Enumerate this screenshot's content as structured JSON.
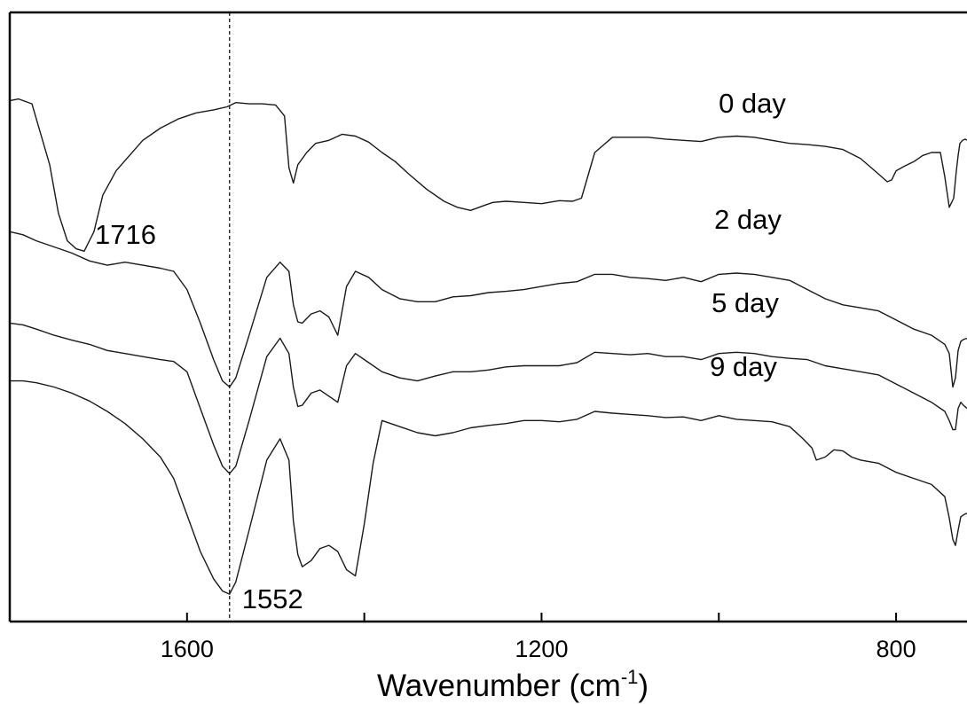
{
  "chart_data": {
    "type": "line",
    "title": "",
    "xlabel": "Wavenumber (cm",
    "xlabel_sup": "-1",
    "xlabel_close": ")",
    "ylabel": "",
    "x_reversed": true,
    "xlim": [
      1800,
      720
    ],
    "ylim": [
      0,
      1
    ],
    "y_ticks_shown": false,
    "grid": false,
    "x_ticks": [
      1600,
      1400,
      1200,
      1000,
      800
    ],
    "x_tick_labels": [
      {
        "value": 1600,
        "label": "1600"
      },
      {
        "value": 1200,
        "label": "1200"
      },
      {
        "value": 800,
        "label": "800"
      }
    ],
    "reference_line": {
      "x": 1552,
      "style": "dashed",
      "label": "1552"
    },
    "annotations": [
      {
        "text": "1716",
        "x": 1716,
        "series": "0 day"
      }
    ],
    "series": [
      {
        "name": "0 day",
        "x": [
          1800,
          1790,
          1775,
          1765,
          1755,
          1745,
          1735,
          1725,
          1716,
          1705,
          1695,
          1680,
          1665,
          1650,
          1630,
          1610,
          1590,
          1570,
          1555,
          1545,
          1530,
          1515,
          1500,
          1490,
          1485,
          1480,
          1475,
          1465,
          1455,
          1440,
          1425,
          1410,
          1395,
          1380,
          1365,
          1350,
          1330,
          1310,
          1295,
          1280,
          1265,
          1255,
          1240,
          1220,
          1200,
          1180,
          1165,
          1155,
          1140,
          1120,
          1100,
          1080,
          1060,
          1040,
          1020,
          1000,
          980,
          960,
          940,
          920,
          900,
          880,
          860,
          840,
          820,
          810,
          805,
          800,
          790,
          780,
          770,
          760,
          750,
          745,
          740,
          735,
          732,
          730,
          728,
          725,
          722,
          720
        ],
        "y": [
          0.855,
          0.858,
          0.85,
          0.8,
          0.75,
          0.67,
          0.625,
          0.612,
          0.608,
          0.64,
          0.7,
          0.74,
          0.765,
          0.79,
          0.81,
          0.825,
          0.835,
          0.84,
          0.845,
          0.852,
          0.85,
          0.85,
          0.848,
          0.83,
          0.745,
          0.72,
          0.75,
          0.77,
          0.785,
          0.79,
          0.8,
          0.797,
          0.787,
          0.77,
          0.755,
          0.735,
          0.71,
          0.69,
          0.68,
          0.675,
          0.683,
          0.688,
          0.69,
          0.688,
          0.686,
          0.691,
          0.69,
          0.695,
          0.77,
          0.795,
          0.795,
          0.795,
          0.792,
          0.79,
          0.788,
          0.795,
          0.797,
          0.795,
          0.79,
          0.785,
          0.783,
          0.78,
          0.775,
          0.76,
          0.735,
          0.722,
          0.725,
          0.74,
          0.748,
          0.755,
          0.765,
          0.77,
          0.77,
          0.73,
          0.68,
          0.695,
          0.74,
          0.765,
          0.785,
          0.79,
          0.792,
          0.79
        ]
      },
      {
        "name": "2 day",
        "x": [
          1800,
          1785,
          1770,
          1750,
          1730,
          1710,
          1690,
          1670,
          1650,
          1630,
          1615,
          1600,
          1585,
          1570,
          1560,
          1552,
          1545,
          1530,
          1510,
          1495,
          1485,
          1480,
          1475,
          1470,
          1460,
          1450,
          1440,
          1430,
          1420,
          1410,
          1395,
          1380,
          1360,
          1340,
          1320,
          1300,
          1280,
          1260,
          1240,
          1220,
          1200,
          1180,
          1160,
          1140,
          1120,
          1100,
          1080,
          1060,
          1040,
          1020,
          1000,
          980,
          960,
          940,
          920,
          900,
          880,
          860,
          840,
          820,
          800,
          780,
          760,
          745,
          740,
          736,
          733,
          730,
          727,
          724,
          720
        ],
        "y": [
          0.64,
          0.635,
          0.625,
          0.615,
          0.605,
          0.592,
          0.585,
          0.59,
          0.585,
          0.58,
          0.575,
          0.545,
          0.49,
          0.43,
          0.395,
          0.385,
          0.4,
          0.47,
          0.565,
          0.59,
          0.575,
          0.52,
          0.492,
          0.49,
          0.505,
          0.51,
          0.5,
          0.47,
          0.55,
          0.575,
          0.565,
          0.545,
          0.53,
          0.525,
          0.525,
          0.533,
          0.535,
          0.54,
          0.542,
          0.545,
          0.55,
          0.555,
          0.558,
          0.57,
          0.57,
          0.565,
          0.563,
          0.56,
          0.565,
          0.558,
          0.57,
          0.572,
          0.57,
          0.565,
          0.56,
          0.545,
          0.53,
          0.52,
          0.515,
          0.51,
          0.495,
          0.48,
          0.47,
          0.455,
          0.44,
          0.385,
          0.4,
          0.445,
          0.46,
          0.463,
          0.465
        ]
      },
      {
        "name": "5 day",
        "x": [
          1800,
          1785,
          1770,
          1750,
          1730,
          1710,
          1690,
          1670,
          1650,
          1630,
          1615,
          1600,
          1585,
          1570,
          1560,
          1552,
          1545,
          1530,
          1510,
          1495,
          1485,
          1480,
          1475,
          1470,
          1460,
          1450,
          1440,
          1430,
          1420,
          1410,
          1395,
          1380,
          1360,
          1340,
          1320,
          1300,
          1280,
          1260,
          1240,
          1220,
          1200,
          1180,
          1160,
          1140,
          1120,
          1100,
          1080,
          1060,
          1040,
          1020,
          1000,
          980,
          960,
          940,
          920,
          900,
          880,
          860,
          840,
          820,
          800,
          780,
          760,
          745,
          740,
          736,
          733,
          730,
          727,
          724,
          720
        ],
        "y": [
          0.49,
          0.487,
          0.48,
          0.47,
          0.462,
          0.455,
          0.445,
          0.44,
          0.435,
          0.43,
          0.427,
          0.41,
          0.35,
          0.29,
          0.255,
          0.243,
          0.255,
          0.33,
          0.435,
          0.465,
          0.44,
          0.385,
          0.353,
          0.355,
          0.375,
          0.38,
          0.37,
          0.36,
          0.42,
          0.44,
          0.425,
          0.41,
          0.4,
          0.395,
          0.403,
          0.41,
          0.41,
          0.413,
          0.418,
          0.42,
          0.42,
          0.42,
          0.425,
          0.442,
          0.44,
          0.438,
          0.44,
          0.435,
          0.435,
          0.43,
          0.44,
          0.442,
          0.44,
          0.435,
          0.432,
          0.43,
          0.42,
          0.415,
          0.41,
          0.405,
          0.39,
          0.375,
          0.36,
          0.345,
          0.33,
          0.315,
          0.315,
          0.35,
          0.36,
          0.355,
          0.35
        ]
      },
      {
        "name": "9 day",
        "x": [
          1800,
          1785,
          1770,
          1750,
          1730,
          1710,
          1690,
          1670,
          1650,
          1630,
          1615,
          1600,
          1585,
          1570,
          1560,
          1552,
          1545,
          1530,
          1510,
          1495,
          1485,
          1480,
          1475,
          1470,
          1460,
          1450,
          1440,
          1430,
          1420,
          1410,
          1400,
          1390,
          1380,
          1360,
          1340,
          1320,
          1300,
          1280,
          1260,
          1240,
          1220,
          1200,
          1180,
          1160,
          1140,
          1120,
          1100,
          1080,
          1060,
          1040,
          1020,
          1000,
          980,
          960,
          940,
          920,
          905,
          895,
          890,
          880,
          870,
          860,
          850,
          840,
          820,
          800,
          780,
          760,
          745,
          740,
          736,
          733,
          730,
          727,
          724,
          720
        ],
        "y": [
          0.395,
          0.395,
          0.392,
          0.385,
          0.375,
          0.362,
          0.345,
          0.325,
          0.3,
          0.27,
          0.235,
          0.175,
          0.115,
          0.07,
          0.05,
          0.045,
          0.065,
          0.15,
          0.265,
          0.3,
          0.265,
          0.165,
          0.11,
          0.09,
          0.1,
          0.12,
          0.125,
          0.115,
          0.085,
          0.075,
          0.16,
          0.26,
          0.33,
          0.32,
          0.31,
          0.305,
          0.31,
          0.318,
          0.322,
          0.325,
          0.33,
          0.33,
          0.328,
          0.332,
          0.345,
          0.342,
          0.34,
          0.338,
          0.335,
          0.336,
          0.33,
          0.338,
          0.332,
          0.33,
          0.328,
          0.32,
          0.3,
          0.285,
          0.265,
          0.27,
          0.282,
          0.28,
          0.27,
          0.265,
          0.26,
          0.245,
          0.235,
          0.225,
          0.205,
          0.17,
          0.135,
          0.125,
          0.15,
          0.172,
          0.175,
          0.178
        ]
      }
    ],
    "series_labels": [
      {
        "series": "0 day",
        "text": "0 day"
      },
      {
        "series": "2 day",
        "text": "2 day"
      },
      {
        "series": "5 day",
        "text": "5 day"
      },
      {
        "series": "9 day",
        "text": "9 day"
      }
    ],
    "line_color": "#1a1a1a"
  }
}
